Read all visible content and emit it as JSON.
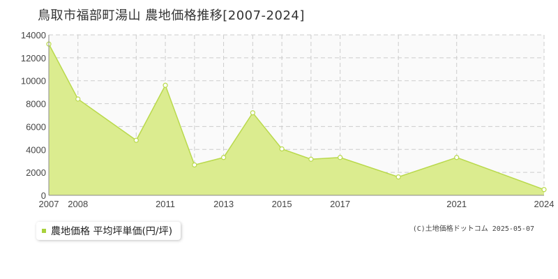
{
  "title": "鳥取市福部町湯山 農地価格推移[2007-2024]",
  "legend": {
    "label": "農地価格 平均坪単価(円/坪)"
  },
  "copyright": "(C)土地価格ドットコム 2025-05-07",
  "colors": {
    "area_fill": "#dbec8f",
    "line": "#b9d94c",
    "point_fill": "#ffffff",
    "grid": "#cccccc",
    "legend_swatch": "#a8d13b"
  },
  "chart_data": {
    "type": "area",
    "x": [
      2007,
      2008,
      2010,
      2011,
      2012,
      2013,
      2014,
      2015,
      2016,
      2017,
      2019,
      2021,
      2024
    ],
    "series": [
      {
        "name": "農地価格 平均坪単価(円/坪)",
        "values": [
          13200,
          8400,
          4800,
          9600,
          2650,
          3300,
          7200,
          4050,
          3150,
          3300,
          1600,
          3300,
          500
        ]
      }
    ],
    "x_ticks": [
      2007,
      2008,
      2011,
      2013,
      2015,
      2017,
      2021,
      2024
    ],
    "y_ticks": [
      0,
      2000,
      4000,
      6000,
      8000,
      10000,
      12000,
      14000
    ],
    "xlim": [
      2007,
      2024
    ],
    "ylim": [
      0,
      14000
    ],
    "grid": true,
    "legend_position": "bottom-left"
  }
}
